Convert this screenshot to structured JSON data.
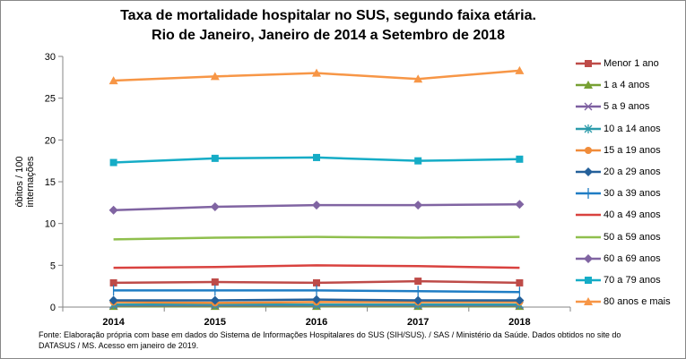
{
  "chart_data": {
    "type": "line",
    "title": [
      "Taxa de mortalidade hospitalar no SUS, segundo faixa etária.",
      "Rio de Janeiro, Janeiro de 2014 a Setembro de 2018"
    ],
    "ylabel": "óbitos / 100 internações",
    "xlabel": "",
    "categories": [
      "2014",
      "2015",
      "2016",
      "2017",
      "2018"
    ],
    "ylim": [
      0,
      30
    ],
    "yticks": [
      0,
      5,
      10,
      15,
      20,
      25,
      30
    ],
    "grid": false,
    "legend": "right",
    "series": [
      {
        "name": "Menor 1 ano",
        "color": "#be4b48",
        "marker": "square",
        "values": [
          2.9,
          3.0,
          2.9,
          3.1,
          2.9
        ]
      },
      {
        "name": "1 a 4 anos",
        "color": "#77a033",
        "marker": "triangle",
        "values": [
          0.1,
          0.1,
          0.1,
          0.1,
          0.1
        ]
      },
      {
        "name": "5 a 9 anos",
        "color": "#7d5fa0",
        "marker": "x",
        "values": [
          0.2,
          0.2,
          0.2,
          0.2,
          0.2
        ]
      },
      {
        "name": "10 a 14 anos",
        "color": "#2c9bab",
        "marker": "star",
        "values": [
          0.3,
          0.3,
          0.3,
          0.3,
          0.3
        ]
      },
      {
        "name": "15 a 19 anos",
        "color": "#f08c3a",
        "marker": "circle",
        "values": [
          0.6,
          0.5,
          0.6,
          0.6,
          0.6
        ]
      },
      {
        "name": "20 a 29 anos",
        "color": "#24609a",
        "marker": "diamond",
        "values": [
          0.8,
          0.8,
          0.9,
          0.8,
          0.8
        ]
      },
      {
        "name": "30 a 39 anos",
        "color": "#1f7dc4",
        "marker": "plus",
        "values": [
          2.0,
          2.0,
          2.0,
          1.9,
          1.8
        ]
      },
      {
        "name": "40 a 49 anos",
        "color": "#d9423f",
        "marker": "none",
        "values": [
          4.7,
          4.8,
          5.0,
          4.9,
          4.7
        ]
      },
      {
        "name": "50 a 59 anos",
        "color": "#8fbf4d",
        "marker": "none",
        "values": [
          8.1,
          8.3,
          8.4,
          8.3,
          8.4
        ]
      },
      {
        "name": "60 a 69 anos",
        "color": "#8064a2",
        "marker": "diamond",
        "values": [
          11.6,
          12.0,
          12.2,
          12.2,
          12.3
        ]
      },
      {
        "name": "70 a 79 anos",
        "color": "#15acc6",
        "marker": "square",
        "values": [
          17.3,
          17.8,
          17.9,
          17.5,
          17.7
        ]
      },
      {
        "name": "80 anos e mais",
        "color": "#f79646",
        "marker": "triangle",
        "values": [
          27.1,
          27.6,
          28.0,
          27.3,
          28.3
        ]
      }
    ]
  },
  "footer": "Fonte: Elaboração própria com base em dados do  Sistema de Informações Hospitalares do SUS (SIH/SUS). / SAS / Ministério da Saúde. Dados obtidos no site do DATASUS / MS. Acesso em janeiro de 2019."
}
